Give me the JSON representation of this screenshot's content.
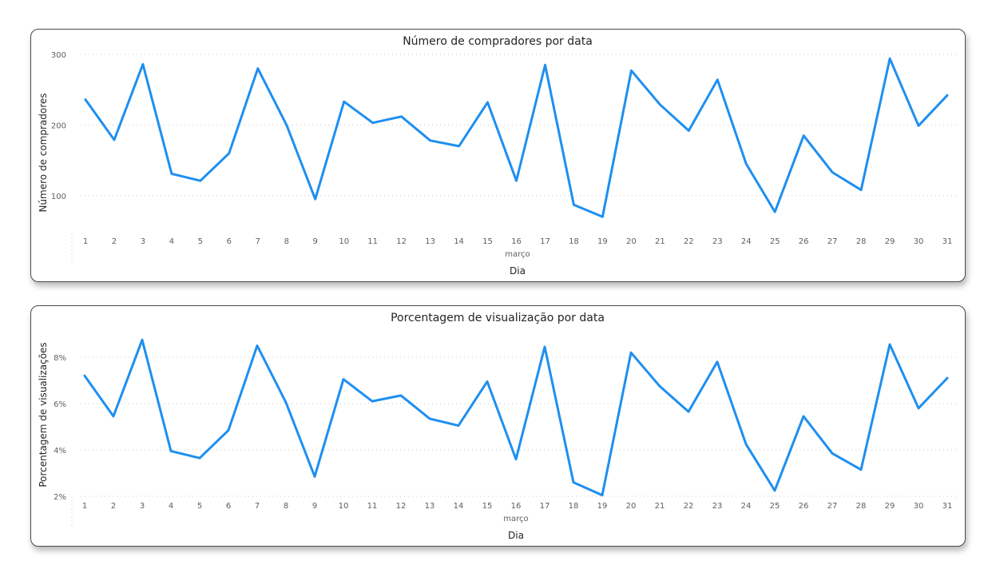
{
  "colors": {
    "series": "#1e8ff0"
  },
  "chart_data": [
    {
      "type": "line",
      "title": "Número de compradores por data",
      "xlabel": "Dia",
      "xsublabel": "março",
      "ylabel": "Número de compradores",
      "ylim": [
        50,
        300
      ],
      "yticks": [
        100,
        200,
        300
      ],
      "ytick_labels": [
        "100",
        "200",
        "300"
      ],
      "categories": [
        "1",
        "2",
        "3",
        "4",
        "5",
        "6",
        "7",
        "8",
        "9",
        "10",
        "11",
        "12",
        "13",
        "14",
        "15",
        "16",
        "17",
        "18",
        "19",
        "20",
        "21",
        "22",
        "23",
        "24",
        "25",
        "26",
        "27",
        "28",
        "29",
        "30",
        "31"
      ],
      "series": [
        {
          "values": [
            236,
            179,
            286,
            131,
            121,
            160,
            280,
            200,
            95,
            233,
            203,
            212,
            178,
            170,
            232,
            121,
            285,
            87,
            70,
            277,
            229,
            192,
            264,
            145,
            77,
            185,
            133,
            108,
            294,
            199,
            242
          ]
        }
      ],
      "grid": true
    },
    {
      "type": "line",
      "title": "Porcentagem de visualização por data",
      "xlabel": "Dia",
      "xsublabel": "março",
      "ylabel": "Porcentagem de visualizações",
      "ylim": [
        2,
        9
      ],
      "yticks": [
        2,
        4,
        6,
        8
      ],
      "ytick_labels": [
        "2%",
        "4%",
        "6%",
        "8%"
      ],
      "categories": [
        "1",
        "2",
        "3",
        "4",
        "5",
        "6",
        "7",
        "8",
        "9",
        "10",
        "11",
        "12",
        "13",
        "14",
        "15",
        "16",
        "17",
        "18",
        "19",
        "20",
        "21",
        "22",
        "23",
        "24",
        "25",
        "26",
        "27",
        "28",
        "29",
        "30",
        "31"
      ],
      "series": [
        {
          "values": [
            7.2,
            5.45,
            8.75,
            3.95,
            3.65,
            4.85,
            8.5,
            6.05,
            2.85,
            7.05,
            6.1,
            6.35,
            5.35,
            5.05,
            6.95,
            3.6,
            8.45,
            2.6,
            2.05,
            8.2,
            6.75,
            5.65,
            7.8,
            4.25,
            2.25,
            5.45,
            3.85,
            3.15,
            8.55,
            5.8,
            7.1
          ]
        }
      ],
      "grid": true
    }
  ]
}
